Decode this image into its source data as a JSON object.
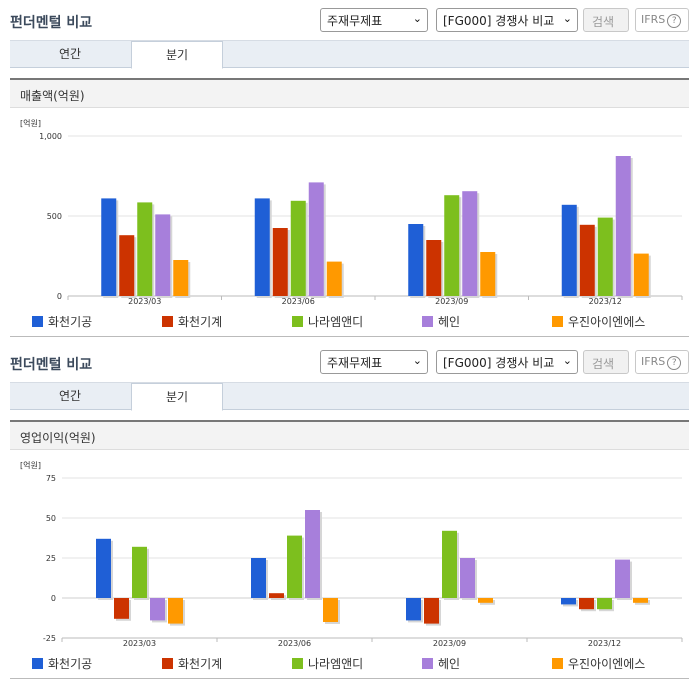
{
  "panels": [
    {
      "title": "펀더멘털 비교",
      "select1": "주재무제표",
      "select2": "[FG000] 경쟁사 비교",
      "search_label": "검색",
      "ifrs_label": "IFRS",
      "tabs": [
        {
          "label": "연간"
        },
        {
          "label": "분기"
        }
      ],
      "active_tab": "분기",
      "subtitle": "매출액(억원)",
      "unit_label": "[억원]"
    },
    {
      "title": "펀더멘털 비교",
      "select1": "주재무제표",
      "select2": "[FG000] 경쟁사 비교",
      "search_label": "검색",
      "ifrs_label": "IFRS",
      "tabs": [
        {
          "label": "연간"
        },
        {
          "label": "분기"
        }
      ],
      "active_tab": "분기",
      "subtitle": "영업이익(억원)",
      "unit_label": "[억원]"
    }
  ],
  "colors": {
    "화천기공": "#1f5fd6",
    "화천기계": "#cc3300",
    "나라엠앤디": "#7dbf1e",
    "헤인": "#a77fdb",
    "우진아이엔에스": "#ff9900"
  },
  "chart_data": [
    {
      "type": "bar",
      "title": "매출액(억원)",
      "ylabel": "[억원]",
      "categories": [
        "2023/03",
        "2023/06",
        "2023/09",
        "2023/12"
      ],
      "yticks": [
        "0",
        "500",
        "1,000"
      ],
      "ylim": [
        0,
        1000
      ],
      "series": [
        {
          "name": "화천기공",
          "values": [
            610,
            610,
            450,
            570
          ]
        },
        {
          "name": "화천기계",
          "values": [
            380,
            425,
            350,
            445
          ]
        },
        {
          "name": "나라엠앤디",
          "values": [
            585,
            595,
            630,
            490
          ]
        },
        {
          "name": "헤인",
          "values": [
            510,
            710,
            655,
            875
          ]
        },
        {
          "name": "우진아이엔에스",
          "values": [
            225,
            215,
            275,
            265
          ]
        }
      ]
    },
    {
      "type": "bar",
      "title": "영업이익(억원)",
      "ylabel": "[억원]",
      "categories": [
        "2023/03",
        "2023/06",
        "2023/09",
        "2023/12"
      ],
      "yticks": [
        "-25",
        "0",
        "25",
        "50",
        "75"
      ],
      "ylim": [
        -25,
        75
      ],
      "series": [
        {
          "name": "화천기공",
          "values": [
            37,
            25,
            -14,
            -4
          ]
        },
        {
          "name": "화천기계",
          "values": [
            -13,
            3,
            -16,
            -7
          ]
        },
        {
          "name": "나라엠앤디",
          "values": [
            32,
            39,
            42,
            -7
          ]
        },
        {
          "name": "헤인",
          "values": [
            -14,
            55,
            25,
            24
          ]
        },
        {
          "name": "우진아이엔에스",
          "values": [
            -16,
            -15,
            -3,
            -3
          ]
        }
      ]
    }
  ]
}
